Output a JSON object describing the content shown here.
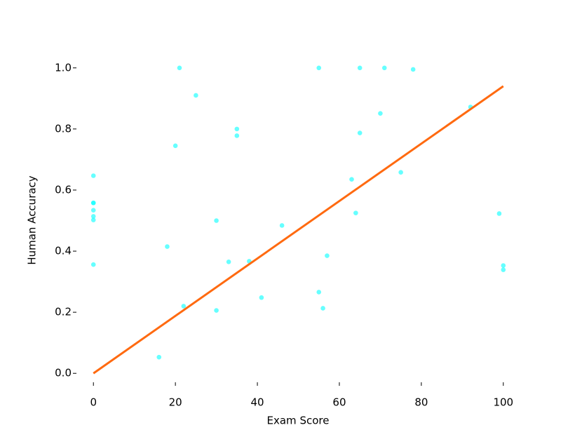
{
  "chart_data": {
    "type": "scatter",
    "xlabel": "Exam Score",
    "ylabel": "Human Accuracy",
    "xlim": [
      -5,
      105
    ],
    "ylim": [
      -0.05,
      1.05
    ],
    "xticks": [
      0,
      20,
      40,
      60,
      80,
      100
    ],
    "yticks": [
      {
        "value": 0,
        "label": "0.0"
      },
      0.2,
      0.4,
      0.6,
      0.8,
      {
        "value": 1,
        "label": "1.0"
      }
    ],
    "points": {
      "color": "#00ffff",
      "x": [
        0,
        0,
        0,
        0,
        0,
        0,
        0,
        16,
        18,
        20,
        21,
        22,
        25,
        30,
        30,
        33,
        35,
        35,
        38,
        41,
        46,
        55,
        55,
        56,
        57,
        63,
        64,
        65,
        65,
        70,
        71,
        75,
        78,
        92,
        99,
        100,
        100
      ],
      "y": [
        0.647,
        0.558,
        0.558,
        0.534,
        0.514,
        0.502,
        0.356,
        0.053,
        0.415,
        0.745,
        1.0,
        0.22,
        0.91,
        0.5,
        0.206,
        0.365,
        0.8,
        0.778,
        0.367,
        0.248,
        0.484,
        1.0,
        0.266,
        0.213,
        0.385,
        0.635,
        0.525,
        1.0,
        0.787,
        0.851,
        1.0,
        0.658,
        0.995,
        0.872,
        0.523,
        0.353,
        0.339
      ]
    },
    "fit_line": {
      "color": "#ff6a10",
      "x": [
        0,
        100
      ],
      "y": [
        0,
        0.94
      ]
    }
  }
}
